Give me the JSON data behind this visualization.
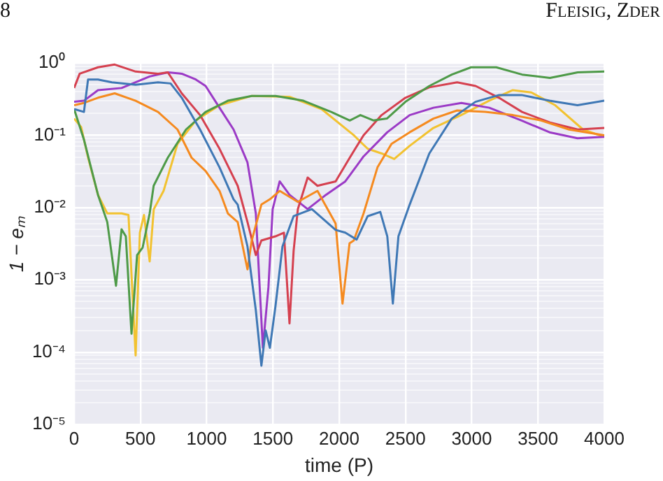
{
  "chart_data": {
    "type": "line",
    "xlabel": "time (P)",
    "ylabel": "1 − eₘ",
    "annotations": [
      "8",
      "Fleisig, Zder"
    ],
    "log": "y",
    "grid": true,
    "legend": false,
    "xlim": [
      0,
      4000
    ],
    "xticks": [
      0,
      500,
      1000,
      1500,
      2000,
      2500,
      3000,
      3500,
      4000
    ],
    "ylim": [
      1e-05,
      1
    ],
    "yticks": [
      {
        "value": 1e-05,
        "label": "10⁻⁵"
      },
      {
        "value": 2e-05,
        "label": null
      },
      {
        "value": 3e-05,
        "label": null
      },
      {
        "value": 4e-05,
        "label": null
      },
      {
        "value": 5e-05,
        "label": null
      },
      {
        "value": 6e-05,
        "label": null
      },
      {
        "value": 7e-05,
        "label": null
      },
      {
        "value": 8e-05,
        "label": null
      },
      {
        "value": 9e-05,
        "label": null
      },
      {
        "value": 0.0001,
        "label": "10⁻⁴"
      },
      {
        "value": 0.0002,
        "label": null
      },
      {
        "value": 0.0003,
        "label": null
      },
      {
        "value": 0.0004,
        "label": null
      },
      {
        "value": 0.0005,
        "label": null
      },
      {
        "value": 0.0006,
        "label": null
      },
      {
        "value": 0.0007,
        "label": null
      },
      {
        "value": 0.0008,
        "label": null
      },
      {
        "value": 0.0009,
        "label": null
      },
      {
        "value": 0.001,
        "label": "10⁻³"
      },
      {
        "value": 0.002,
        "label": null
      },
      {
        "value": 0.003,
        "label": null
      },
      {
        "value": 0.004,
        "label": null
      },
      {
        "value": 0.005,
        "label": null
      },
      {
        "value": 0.006,
        "label": null
      },
      {
        "value": 0.007,
        "label": null
      },
      {
        "value": 0.008,
        "label": null
      },
      {
        "value": 0.009,
        "label": null
      },
      {
        "value": 0.01,
        "label": "10⁻²"
      },
      {
        "value": 0.02,
        "label": null
      },
      {
        "value": 0.03,
        "label": null
      },
      {
        "value": 0.04,
        "label": null
      },
      {
        "value": 0.05,
        "label": null
      },
      {
        "value": 0.06,
        "label": null
      },
      {
        "value": 0.07,
        "label": null
      },
      {
        "value": 0.08,
        "label": null
      },
      {
        "value": 0.09,
        "label": null
      },
      {
        "value": 0.1,
        "label": "10⁻¹"
      },
      {
        "value": 0.2,
        "label": null
      },
      {
        "value": 0.3,
        "label": null
      },
      {
        "value": 0.4,
        "label": null
      },
      {
        "value": 0.5,
        "label": null
      },
      {
        "value": 0.6,
        "label": null
      },
      {
        "value": 0.7,
        "label": null
      },
      {
        "value": 0.8,
        "label": null
      },
      {
        "value": 0.9,
        "label": null
      },
      {
        "value": 1,
        "label": "10⁰"
      }
    ],
    "series": [
      {
        "color": "#3f78b5",
        "x": [
          0,
          74,
          105,
          180,
          285,
          464,
          633,
          728,
          812,
          950,
          1097,
          1203,
          1234,
          1308,
          1371,
          1413,
          1445,
          1477,
          1519,
          1572,
          1656,
          1794,
          1973,
          2046,
          2131,
          2215,
          2310,
          2363,
          2405,
          2447,
          2532,
          2680,
          2849,
          3028,
          3207,
          3376,
          3587,
          3798,
          4000
        ],
        "values": [
          0.23,
          0.21,
          0.59,
          0.59,
          0.54,
          0.5,
          0.54,
          0.52,
          0.33,
          0.12,
          0.036,
          0.013,
          0.011,
          0.0029,
          0.00038,
          6.5e-05,
          0.0002,
          0.000115,
          0.00043,
          0.0029,
          0.0076,
          0.0095,
          0.0049,
          0.0045,
          0.0036,
          0.0076,
          0.0087,
          0.004,
          0.00047,
          0.004,
          0.011,
          0.056,
          0.17,
          0.29,
          0.36,
          0.36,
          0.3,
          0.26,
          0.3
        ]
      },
      {
        "color": "#f58a1f",
        "x": [
          0,
          74,
          180,
          306,
          464,
          633,
          780,
          886,
          992,
          1097,
          1160,
          1234,
          1308,
          1340,
          1413,
          1477,
          1551,
          1688,
          1836,
          1973,
          2025,
          2078,
          2110,
          2184,
          2289,
          2395,
          2532,
          2711,
          2890,
          3101,
          3312,
          3523,
          3735,
          4000
        ],
        "values": [
          0.26,
          0.28,
          0.33,
          0.38,
          0.3,
          0.21,
          0.12,
          0.049,
          0.032,
          0.017,
          0.0083,
          0.0063,
          0.0014,
          0.0035,
          0.011,
          0.013,
          0.017,
          0.012,
          0.017,
          0.006,
          0.00047,
          0.0032,
          0.0035,
          0.0083,
          0.036,
          0.076,
          0.11,
          0.17,
          0.22,
          0.21,
          0.19,
          0.16,
          0.12,
          0.1
        ]
      },
      {
        "color": "#4e9a48",
        "x": [
          0,
          74,
          127,
          180,
          250,
          316,
          358,
          390,
          433,
          475,
          517,
          570,
          600,
          707,
          844,
          992,
          1160,
          1340,
          1520,
          1730,
          1940,
          2080,
          2160,
          2260,
          2360,
          2500,
          2680,
          2850,
          2995,
          3185,
          3380,
          3590,
          3800,
          4000
        ],
        "values": [
          0.23,
          0.087,
          0.036,
          0.015,
          0.0063,
          0.00083,
          0.005,
          0.004,
          0.00018,
          0.0022,
          0.0028,
          0.0083,
          0.02,
          0.049,
          0.12,
          0.21,
          0.3,
          0.35,
          0.35,
          0.3,
          0.21,
          0.16,
          0.19,
          0.16,
          0.17,
          0.29,
          0.48,
          0.69,
          0.87,
          0.87,
          0.69,
          0.62,
          0.74,
          0.76
        ]
      },
      {
        "color": "#d5404f",
        "x": [
          0,
          42,
          180,
          306,
          464,
          633,
          707,
          812,
          950,
          1097,
          1234,
          1308,
          1371,
          1413,
          1519,
          1583,
          1625,
          1656,
          1688,
          1762,
          1836,
          1973,
          2080,
          2184,
          2320,
          2500,
          2680,
          2890,
          3030,
          3205,
          3380,
          3590,
          3800,
          4000
        ],
        "values": [
          0.45,
          0.71,
          0.87,
          0.95,
          0.76,
          0.71,
          0.74,
          0.38,
          0.19,
          0.065,
          0.02,
          0.0063,
          0.0022,
          0.0035,
          0.004,
          0.0045,
          0.00025,
          0.0025,
          0.0095,
          0.026,
          0.02,
          0.023,
          0.049,
          0.1,
          0.19,
          0.33,
          0.46,
          0.54,
          0.48,
          0.33,
          0.21,
          0.15,
          0.12,
          0.126
        ]
      },
      {
        "color": "#9b3ac6",
        "x": [
          0,
          74,
          180,
          358,
          570,
          707,
          812,
          918,
          992,
          1097,
          1203,
          1308,
          1371,
          1424,
          1466,
          1498,
          1551,
          1625,
          1762,
          1900,
          2046,
          2184,
          2363,
          2532,
          2711,
          2922,
          3133,
          3376,
          3587,
          3798,
          4000
        ],
        "values": [
          0.29,
          0.3,
          0.42,
          0.45,
          0.65,
          0.74,
          0.71,
          0.59,
          0.48,
          0.24,
          0.12,
          0.042,
          0.0083,
          0.000115,
          0.00079,
          0.0095,
          0.023,
          0.015,
          0.0095,
          0.015,
          0.023,
          0.051,
          0.11,
          0.19,
          0.24,
          0.28,
          0.24,
          0.16,
          0.11,
          0.091,
          0.095
        ]
      },
      {
        "color": "#f2c230",
        "x": [
          0,
          53,
          105,
          180,
          250,
          358,
          410,
          464,
          496,
          527,
          570,
          601,
          675,
          780,
          918,
          1097,
          1340,
          1625,
          1867,
          2110,
          2215,
          2320,
          2415,
          2530,
          2710,
          2920,
          3130,
          3310,
          3450,
          3630,
          3840,
          4000
        ],
        "values": [
          0.17,
          0.13,
          0.049,
          0.015,
          0.0083,
          0.0083,
          0.0079,
          9e-05,
          0.0045,
          0.0079,
          0.0018,
          0.0095,
          0.017,
          0.076,
          0.16,
          0.26,
          0.35,
          0.34,
          0.23,
          0.1,
          0.065,
          0.056,
          0.047,
          0.071,
          0.126,
          0.19,
          0.3,
          0.42,
          0.39,
          0.26,
          0.12,
          0.095
        ]
      }
    ]
  }
}
